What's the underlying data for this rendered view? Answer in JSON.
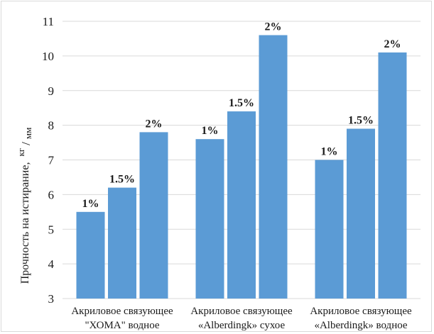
{
  "chart_data": {
    "type": "bar",
    "ylabel": "Прочность на истирание,",
    "ylabel_unit_num": "кг",
    "ylabel_unit_den": "мм",
    "ylim": [
      3,
      11
    ],
    "yticks": [
      3,
      4,
      5,
      6,
      7,
      8,
      9,
      10,
      11
    ],
    "grid": true,
    "bar_color": "#5b9bd5",
    "grid_color": "#d9d9d9",
    "categories": [
      {
        "line1": "Акриловое связующее",
        "line2": "\"ХОМА\" водное"
      },
      {
        "line1": "Акриловое связующее",
        "line2": "«Alberdingk» сухое"
      },
      {
        "line1": "Акриловое связующее",
        "line2": "«Alberdingk» водное"
      }
    ],
    "series": [
      {
        "name": "1%",
        "values": [
          5.5,
          7.6,
          7.0
        ]
      },
      {
        "name": "1.5%",
        "values": [
          6.2,
          8.4,
          7.9
        ]
      },
      {
        "name": "2%",
        "values": [
          7.8,
          10.6,
          10.1
        ]
      }
    ]
  }
}
